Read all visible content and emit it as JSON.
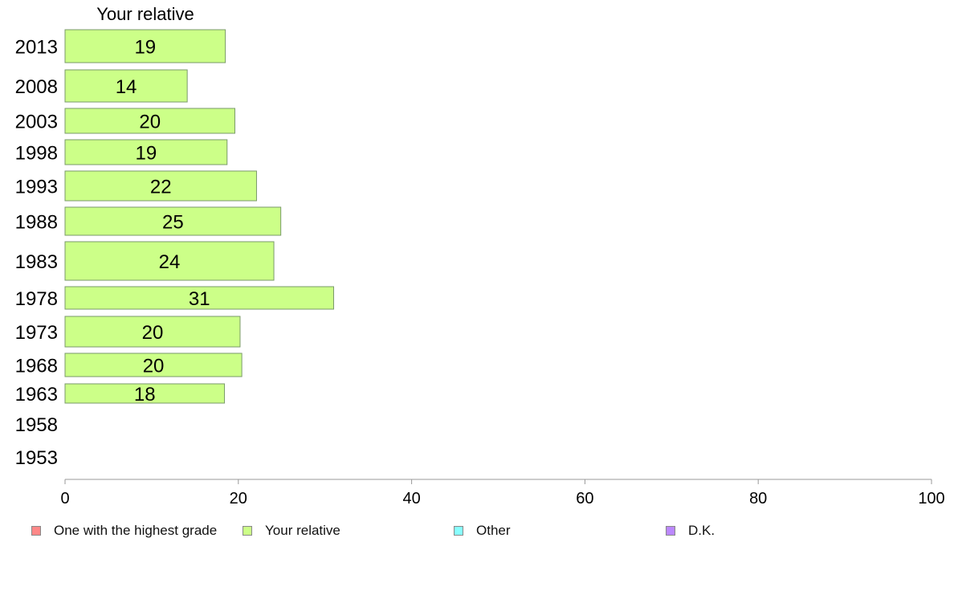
{
  "chart_data": {
    "type": "bar",
    "orientation": "horizontal",
    "title": "Your relative",
    "categories": [
      "2013",
      "2008",
      "2003",
      "1998",
      "1993",
      "1988",
      "1983",
      "1978",
      "1973",
      "1968",
      "1963",
      "1958",
      "1953"
    ],
    "series": [
      {
        "name": "Your relative",
        "color": "#ccff88",
        "values": [
          18.5,
          14.1,
          19.6,
          18.7,
          22.1,
          24.9,
          24.1,
          31.0,
          20.2,
          20.4,
          18.4,
          null,
          null
        ],
        "labels": [
          "19",
          "14",
          "20",
          "19",
          "22",
          "25",
          "24",
          "31",
          "20",
          "20",
          "18",
          "",
          ""
        ]
      }
    ],
    "xlim": [
      0,
      100
    ],
    "xticks": [
      0,
      20,
      40,
      60,
      80,
      100
    ],
    "xlabel": "",
    "ylabel": "",
    "grid": false,
    "legend_position": "bottom"
  },
  "legend": {
    "items": [
      {
        "label": "One with the highest grade",
        "color": "#ff8888"
      },
      {
        "label": "Your relative",
        "color": "#ccff88"
      },
      {
        "label": "Other",
        "color": "#88ffff"
      },
      {
        "label": "D.K.",
        "color": "#bb88ff"
      }
    ]
  }
}
